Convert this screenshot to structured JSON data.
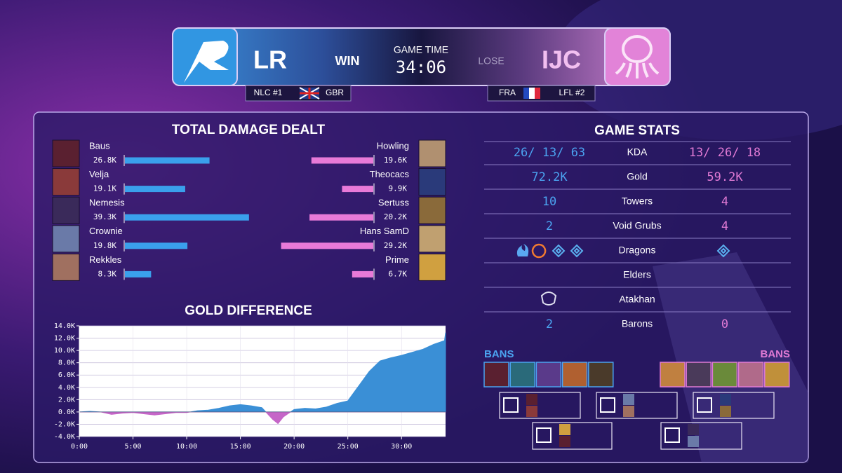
{
  "header": {
    "left_team": "LR",
    "left_result": "WIN",
    "game_time_label": "GAME TIME",
    "game_time": "34:06",
    "right_result": "LOSE",
    "right_team": "IJC",
    "left_tags": [
      "NLC #1",
      "GBR"
    ],
    "right_tags": [
      "FRA",
      "LFL #2"
    ]
  },
  "chart_data": [
    {
      "type": "butterfly",
      "title": "TOTAL DAMAGE DEALT",
      "series": [
        {
          "categories": [
            "Baus",
            "Velja",
            "Nemesis",
            "Crownie",
            "Rekkles"
          ],
          "values": [
            26.8,
            19.1,
            39.3,
            19.8,
            8.3
          ],
          "value_labels": [
            "26.8K",
            "19.1K",
            "39.3K",
            "19.8K",
            "8.3K"
          ],
          "color": "#3aa0ec"
        },
        {
          "categories": [
            "Howling",
            "Theocacs",
            "Sertuss",
            "Hans SamD",
            "Prime"
          ],
          "values": [
            19.6,
            9.9,
            20.2,
            29.2,
            6.7
          ],
          "value_labels": [
            "19.6K",
            "9.9K",
            "20.2K",
            "29.2K",
            "6.7K"
          ],
          "color": "#e87ad8"
        }
      ]
    },
    {
      "type": "area",
      "title": "GOLD DIFFERENCE",
      "x": [
        0,
        1,
        2,
        3,
        4,
        5,
        6,
        7,
        8,
        9,
        10,
        11,
        12,
        13,
        14,
        15,
        16,
        17,
        18,
        18.5,
        19,
        20,
        21,
        22,
        23,
        24,
        25,
        26,
        27,
        28,
        29,
        30,
        31,
        32,
        33,
        34,
        34.1
      ],
      "values": [
        0,
        0.1,
        0,
        -0.4,
        -0.2,
        -0.1,
        -0.3,
        -0.5,
        -0.3,
        -0.1,
        -0.1,
        0.2,
        0.3,
        0.6,
        1.0,
        1.2,
        1.0,
        0.7,
        -1.2,
        -1.9,
        -0.8,
        0.4,
        0.6,
        0.5,
        0.8,
        1.4,
        1.8,
        4.2,
        6.6,
        8.3,
        8.8,
        9.2,
        9.7,
        10.2,
        11.0,
        11.6,
        12.9
      ],
      "xlim": [
        0,
        34.1
      ],
      "ylim": [
        -4,
        14
      ],
      "xticks": [
        {
          "value": 0,
          "label": "0:00"
        },
        {
          "value": 5,
          "label": "5:00"
        },
        {
          "value": 10,
          "label": "10:00"
        },
        {
          "value": 15,
          "label": "15:00"
        },
        {
          "value": 20,
          "label": "20:00"
        },
        {
          "value": 25,
          "label": "25:00"
        },
        {
          "value": 30,
          "label": "30:00"
        }
      ],
      "yticks": [
        {
          "value": -4,
          "label": "-4.0K"
        },
        {
          "value": -2,
          "label": "-2.0K"
        },
        {
          "value": 0,
          "label": "0.0K"
        },
        {
          "value": 2,
          "label": "2.0K"
        },
        {
          "value": 4,
          "label": "4.0K"
        },
        {
          "value": 6,
          "label": "6.0K"
        },
        {
          "value": 8,
          "label": "8.0K"
        },
        {
          "value": 10,
          "label": "10.0K"
        },
        {
          "value": 12,
          "label": "12.0K"
        },
        {
          "value": 14,
          "label": "14.0K"
        }
      ],
      "grid": true,
      "color": "#3a8fd6",
      "negative_color": "#c566c8"
    }
  ],
  "game_stats": {
    "title": "GAME STATS",
    "rows": [
      {
        "label": "KDA",
        "left": "26/ 13/ 63",
        "right": "13/ 26/ 18"
      },
      {
        "label": "Gold",
        "left": "72.2K",
        "right": "59.2K"
      },
      {
        "label": "Towers",
        "left": "10",
        "right": "4"
      },
      {
        "label": "Void Grubs",
        "left": "2",
        "right": "4"
      },
      {
        "label": "Dragons"
      },
      {
        "label": "Elders"
      },
      {
        "label": "Atakhan"
      },
      {
        "label": "Barons",
        "left": "2",
        "right": "0"
      }
    ]
  },
  "bans": {
    "left_label": "BANS",
    "right_label": "BANS"
  }
}
